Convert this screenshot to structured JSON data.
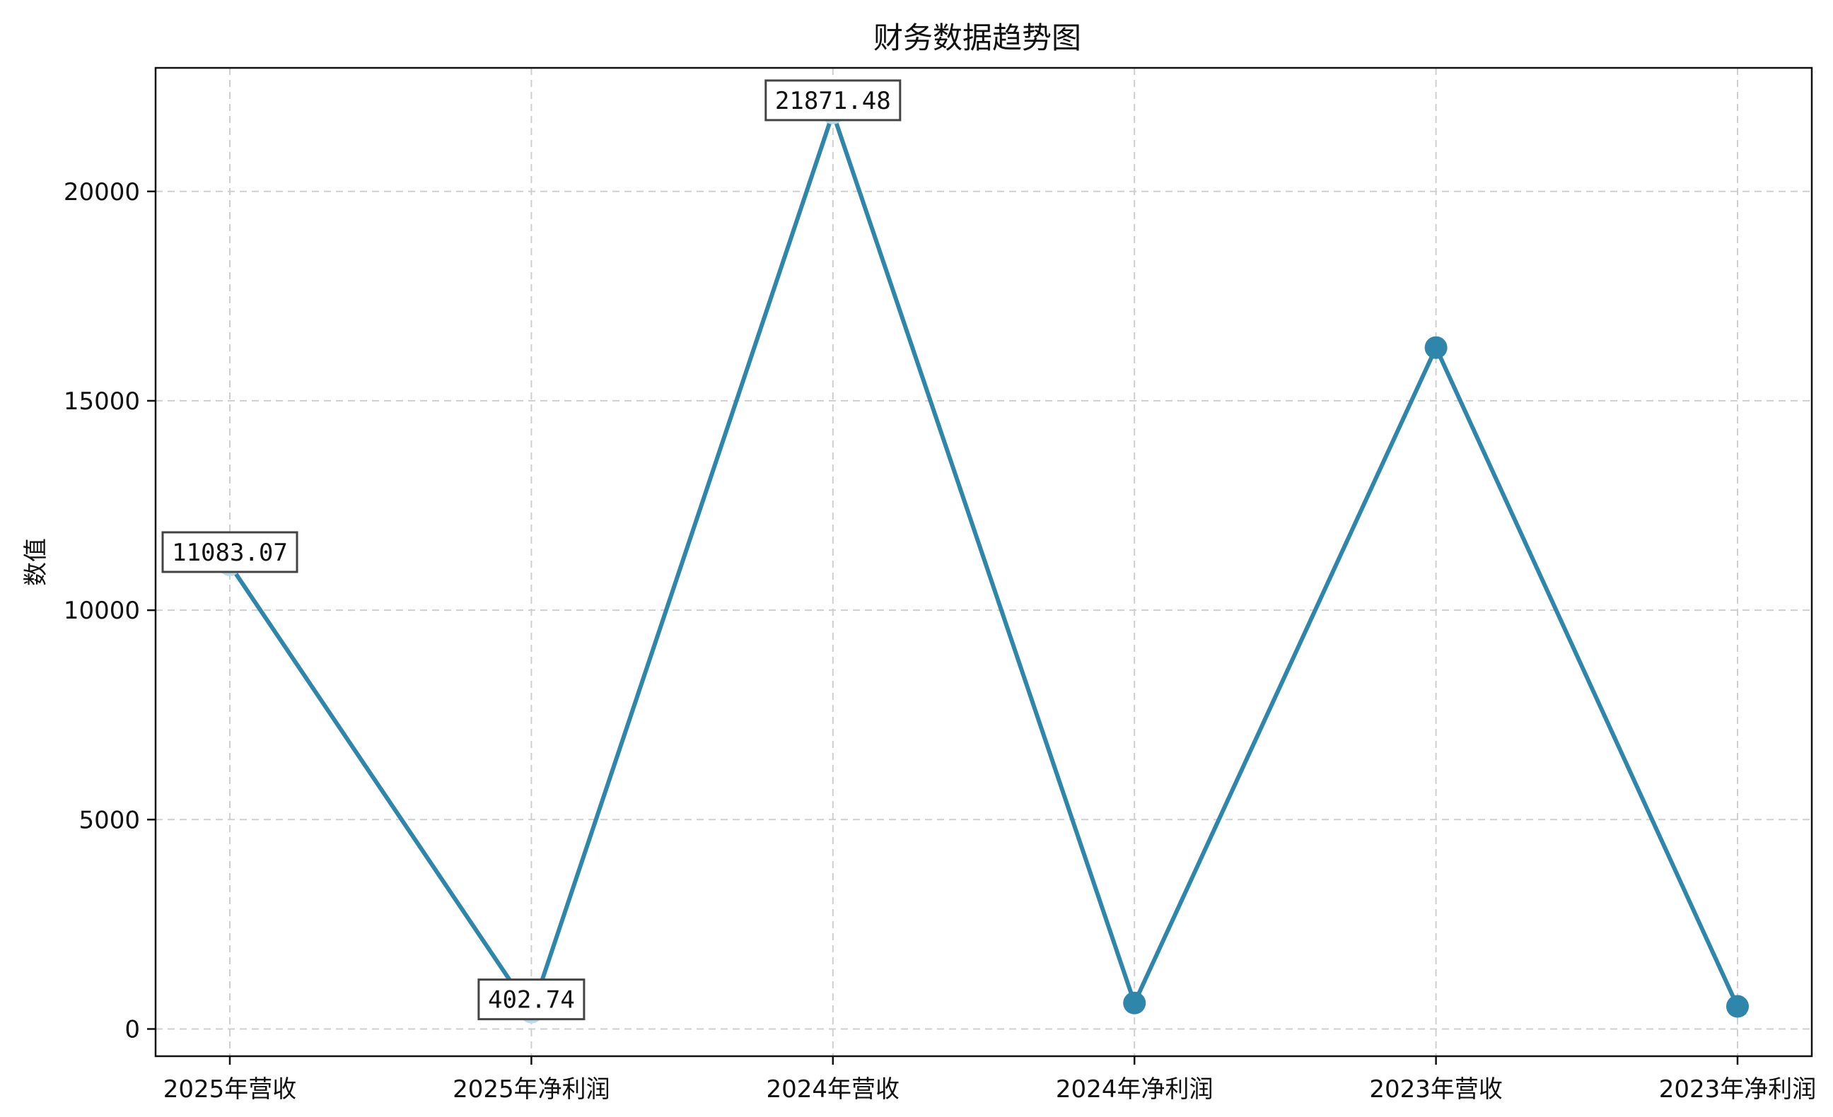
{
  "colors": {
    "line": "#2e86ab",
    "marker": "#2e86ab",
    "highlight_marker": "#b9dbe8"
  },
  "chart_data": {
    "type": "line",
    "title": "财务数据趋势图",
    "xlabel": "",
    "ylabel": "数值",
    "categories": [
      "2025年营收",
      "2025年净利润",
      "2024年营收",
      "2024年净利润",
      "2023年营收",
      "2023年净利润"
    ],
    "series": [
      {
        "values": [
          11083.07,
          402.74,
          21871.48,
          620,
          16270,
          540
        ]
      }
    ],
    "annotations": [
      {
        "index": 0,
        "text": "11083.07"
      },
      {
        "index": 1,
        "text": "402.74"
      },
      {
        "index": 2,
        "text": "21871.48"
      }
    ],
    "yticks": [
      0,
      5000,
      10000,
      15000,
      20000
    ],
    "ylim": [
      -650,
      22950
    ],
    "grid": true,
    "legend": "none"
  }
}
